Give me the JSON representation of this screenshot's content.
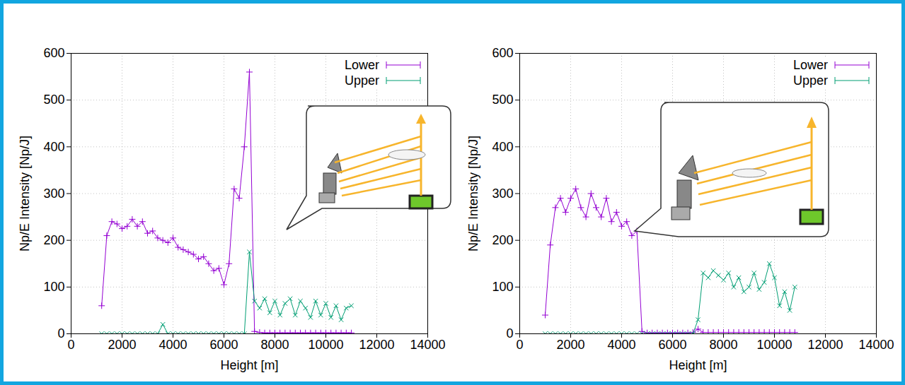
{
  "chart_data": [
    {
      "type": "line",
      "xlabel": "Height [m]",
      "ylabel": "Np/E Intensity [Np/J]",
      "xlim": [
        0,
        14000
      ],
      "xticks": [
        0,
        2000,
        4000,
        6000,
        8000,
        10000,
        12000,
        14000
      ],
      "ylim": [
        0,
        600
      ],
      "yticks": [
        0,
        100,
        200,
        300,
        400,
        500,
        600
      ],
      "grid": true,
      "legend": "top-right",
      "x": [
        1200,
        1400,
        1600,
        1800,
        2000,
        2200,
        2400,
        2600,
        2800,
        3000,
        3200,
        3400,
        3600,
        3800,
        4000,
        4200,
        4400,
        4600,
        4800,
        5000,
        5200,
        5400,
        5600,
        5800,
        6000,
        6200,
        6400,
        6600,
        6800,
        7000,
        7200,
        7400,
        7600,
        7800,
        8000,
        8200,
        8400,
        8600,
        8800,
        9000,
        9200,
        9400,
        9600,
        9800,
        10000,
        10200,
        10400,
        10600,
        10800,
        11000
      ],
      "series": [
        {
          "name": "Lower",
          "color": "#9400d3",
          "marker": "plus",
          "line_style": "solid",
          "values": [
            60,
            210,
            240,
            235,
            225,
            230,
            245,
            230,
            240,
            215,
            220,
            205,
            200,
            195,
            205,
            185,
            180,
            175,
            170,
            160,
            165,
            150,
            135,
            140,
            105,
            150,
            310,
            290,
            400,
            560,
            5,
            3,
            2,
            2,
            2,
            2,
            2,
            2,
            2,
            2,
            2,
            2,
            2,
            2,
            2,
            2,
            2,
            2,
            2,
            2
          ]
        },
        {
          "name": "Upper",
          "color": "#009e73",
          "marker": "times",
          "line_style": "solid",
          "values": [
            0,
            0,
            0,
            0,
            0,
            0,
            0,
            0,
            0,
            0,
            0,
            0,
            20,
            0,
            0,
            0,
            0,
            0,
            0,
            0,
            0,
            0,
            0,
            0,
            0,
            0,
            0,
            0,
            0,
            175,
            70,
            55,
            75,
            45,
            70,
            40,
            65,
            75,
            40,
            70,
            55,
            35,
            70,
            40,
            65,
            35,
            60,
            30,
            55,
            60
          ]
        }
      ]
    },
    {
      "type": "line",
      "xlabel": "Height [m]",
      "ylabel": "Np/E Intensity [Np/J]",
      "xlim": [
        0,
        14000
      ],
      "xticks": [
        0,
        2000,
        4000,
        6000,
        8000,
        10000,
        12000,
        14000
      ],
      "ylim": [
        0,
        600
      ],
      "yticks": [
        0,
        100,
        200,
        300,
        400,
        500,
        600
      ],
      "grid": true,
      "legend": "top-right",
      "x": [
        1000,
        1200,
        1400,
        1600,
        1800,
        2000,
        2200,
        2400,
        2600,
        2800,
        3000,
        3200,
        3400,
        3600,
        3800,
        4000,
        4200,
        4400,
        4600,
        4800,
        5000,
        5200,
        5400,
        5600,
        5800,
        6000,
        6200,
        6400,
        6600,
        6800,
        7000,
        7200,
        7400,
        7600,
        7800,
        8000,
        8200,
        8400,
        8600,
        8800,
        9000,
        9200,
        9400,
        9600,
        9800,
        10000,
        10200,
        10400,
        10600,
        10800
      ],
      "series": [
        {
          "name": "Lower",
          "color": "#9400d3",
          "marker": "plus",
          "line_style": "solid",
          "values": [
            40,
            190,
            270,
            290,
            260,
            290,
            310,
            270,
            250,
            300,
            270,
            250,
            290,
            240,
            260,
            230,
            240,
            210,
            220,
            5,
            2,
            2,
            2,
            2,
            2,
            2,
            2,
            2,
            2,
            3,
            10,
            3,
            3,
            3,
            3,
            3,
            3,
            3,
            3,
            3,
            3,
            3,
            3,
            3,
            3,
            3,
            3,
            3,
            3,
            3
          ]
        },
        {
          "name": "Upper",
          "color": "#009e73",
          "marker": "times",
          "line_style": "solid",
          "values": [
            0,
            0,
            0,
            0,
            0,
            0,
            0,
            0,
            0,
            0,
            0,
            0,
            0,
            0,
            0,
            0,
            0,
            0,
            0,
            0,
            0,
            0,
            0,
            0,
            0,
            0,
            0,
            0,
            0,
            0,
            30,
            130,
            120,
            135,
            125,
            115,
            130,
            100,
            120,
            90,
            100,
            130,
            95,
            110,
            150,
            120,
            60,
            90,
            50,
            100
          ]
        }
      ]
    }
  ]
}
